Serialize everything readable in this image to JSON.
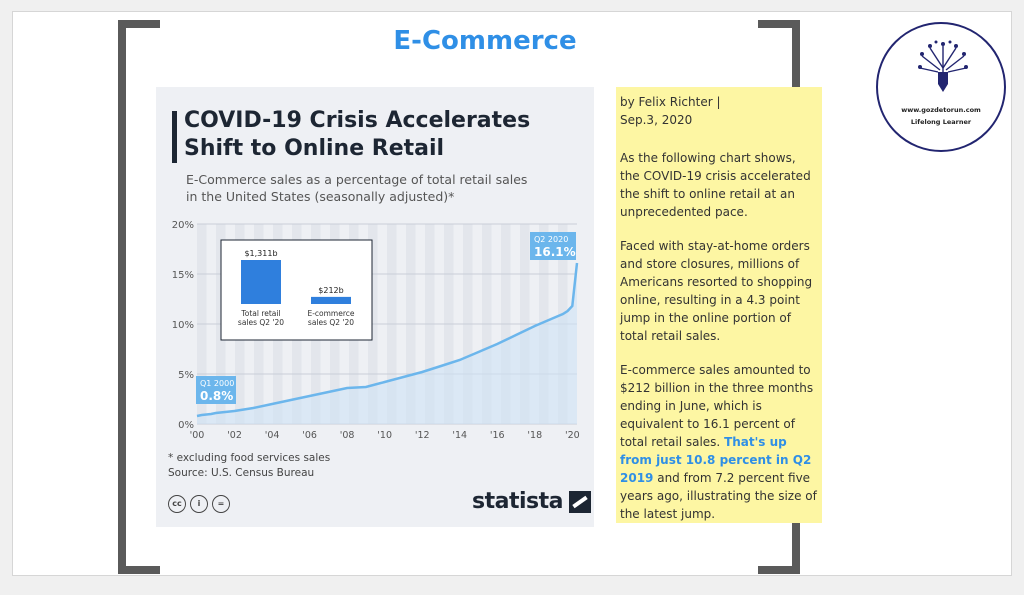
{
  "slide_title": "E-Commerce",
  "card": {
    "title_line1": "COVID-19 Crisis Accelerates",
    "title_line2": "Shift to Online Retail",
    "subtitle_line1": "E-Commerce sales as a percentage of total retail sales",
    "subtitle_line2": "in the United States (seasonally adjusted)*",
    "footnote": "* excluding food services sales",
    "source": "Source: U.S. Census Bureau",
    "brand": "statista",
    "license_icons": [
      "cc-icon",
      "attribution-icon",
      "no-derivatives-icon"
    ]
  },
  "chart_data": [
    {
      "type": "line",
      "x": [
        "2000",
        "2000.25",
        "2000.5",
        "2000.75",
        "2001",
        "2002",
        "2003",
        "2004",
        "2005",
        "2006",
        "2007",
        "2008",
        "2009",
        "2010",
        "2011",
        "2012",
        "2013",
        "2014",
        "2015",
        "2016",
        "2017",
        "2018",
        "2019",
        "2019.25",
        "2019.5",
        "2019.75",
        "2020",
        "2020.25"
      ],
      "y": [
        0.8,
        0.9,
        0.95,
        1.0,
        1.1,
        1.3,
        1.6,
        2.0,
        2.4,
        2.8,
        3.2,
        3.6,
        3.7,
        4.2,
        4.7,
        5.2,
        5.8,
        6.4,
        7.2,
        8.0,
        8.9,
        9.8,
        10.6,
        10.8,
        11.0,
        11.3,
        11.8,
        16.1
      ],
      "xticks": [
        "'00",
        "'02",
        "'04",
        "'06",
        "'08",
        "'10",
        "'12",
        "'14",
        "'16",
        "'18",
        "'20"
      ],
      "yticks": [
        "20%",
        "15%",
        "10%",
        "5%",
        "0%"
      ],
      "ylim": [
        0,
        20
      ],
      "grid": true,
      "annotations": [
        {
          "label": "Q1 2000",
          "value": "0.8%"
        },
        {
          "label": "Q2 2020",
          "value": "16.1%"
        }
      ],
      "color": "#6cb6ec"
    },
    {
      "type": "bar",
      "categories": [
        "Total retail sales Q2 '20",
        "E-commerce sales Q2 '20"
      ],
      "category_lines": [
        [
          "Total retail",
          "sales Q2 '20"
        ],
        [
          "E-commerce",
          "sales Q2 '20"
        ]
      ],
      "values": [
        1311,
        212
      ],
      "data_labels": [
        "$1,311b",
        "$212b"
      ],
      "color": "#2f7fdd"
    }
  ],
  "article": {
    "byline_line1": "by Felix Richter |",
    "byline_line2": "Sep.3, 2020",
    "para1": "As the following chart shows, the COVID-19 crisis accelerated the shift to online retail at an unprecedented pace.",
    "para2": "Faced with stay-at-home orders and store closures, millions of Americans resorted to shopping online, resulting in a 4.3 point jump in the online portion of total retail sales.",
    "para3_start": "E-commerce sales amounted to $212 billion in the three months ending in June, which is equivalent to 16.1 percent of total retail sales. ",
    "para3_highlight": "That's up from just 10.8 percent in Q2 2019",
    "para3_end": " and from 7.2 percent five years ago, illustrating the size of the latest jump."
  },
  "badge": {
    "url": "www.gozdetorun.com",
    "tagline": "Lifelong Learner"
  }
}
